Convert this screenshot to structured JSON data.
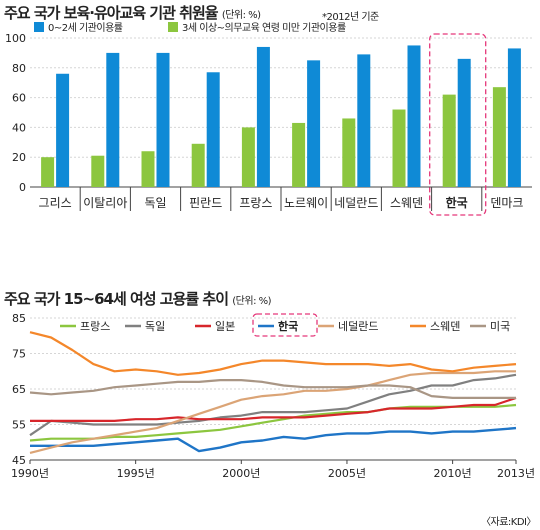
{
  "chart_data": [
    {
      "type": "bar",
      "title": "주요 국가 보육·유아교육 기관 취원율",
      "unit": "(단위: %)",
      "note": "*2012년 기준",
      "categories": [
        "그리스",
        "이탈리아",
        "독일",
        "핀란드",
        "프랑스",
        "노르웨이",
        "네덜란드",
        "스웨덴",
        "한국",
        "덴마크"
      ],
      "highlight": "한국",
      "ylim": [
        0,
        100
      ],
      "yticks": [
        0,
        20,
        40,
        60,
        80,
        100
      ],
      "series": [
        {
          "name": "3세 이상~의무교육 연령 미만 기관이용률",
          "color": "#8cc63f",
          "values": [
            20,
            21,
            24,
            29,
            40,
            43,
            46,
            52,
            62,
            67
          ]
        },
        {
          "name": "0~2세 기관이용률",
          "color": "#0f8ad6",
          "values": [
            76,
            90,
            90,
            77,
            94,
            85,
            89,
            95,
            86,
            93
          ]
        }
      ]
    },
    {
      "type": "line",
      "title": "주요 국가 15~64세 여성 고용률 추이",
      "unit": "(단위: %)",
      "source": "〈자료:KDI〉",
      "x": [
        1990,
        1991,
        1992,
        1993,
        1994,
        1995,
        1996,
        1997,
        1998,
        1999,
        2000,
        2001,
        2002,
        2003,
        2004,
        2005,
        2006,
        2007,
        2008,
        2009,
        2010,
        2011,
        2012,
        2013
      ],
      "xticks": [
        {
          "value": 1990,
          "label": "1990년"
        },
        {
          "value": 1995,
          "label": "1995년"
        },
        {
          "value": 2000,
          "label": "2000년"
        },
        {
          "value": 2005,
          "label": "2005년"
        },
        {
          "value": 2010,
          "label": "2010년"
        },
        {
          "value": 2013,
          "label": "2013년"
        }
      ],
      "ylim": [
        45,
        85
      ],
      "yticks": [
        45,
        55,
        65,
        75,
        85
      ],
      "highlight": "한국",
      "series": [
        {
          "name": "프랑스",
          "color": "#8cc63f",
          "values": [
            50.5,
            51,
            51,
            51,
            51.5,
            51.5,
            52,
            52.5,
            53,
            53.5,
            54.5,
            55.5,
            56.5,
            57.5,
            58,
            58.5,
            58.5,
            59.5,
            60,
            60,
            60,
            60,
            60,
            60.5
          ]
        },
        {
          "name": "독일",
          "color": "#808080",
          "values": [
            52,
            56,
            55.5,
            55,
            55,
            55,
            55,
            55.5,
            56,
            57,
            57.5,
            58.5,
            58.5,
            58.5,
            59,
            59.5,
            61.5,
            63.5,
            64.5,
            66,
            66,
            67.5,
            68,
            69
          ]
        },
        {
          "name": "일본",
          "color": "#d7262b",
          "values": [
            56,
            56,
            56,
            56,
            56,
            56.5,
            56.5,
            57,
            56.5,
            56.5,
            56.5,
            57,
            57,
            57,
            57.5,
            58,
            58.5,
            59.5,
            59.5,
            59.5,
            60,
            60.5,
            60.5,
            62.5
          ]
        },
        {
          "name": "한국",
          "color": "#1f75c7",
          "values": [
            49,
            49,
            49,
            49,
            49.5,
            50,
            50.5,
            51,
            47.5,
            48.5,
            50,
            50.5,
            51.5,
            51,
            52,
            52.5,
            52.5,
            53,
            53,
            52.5,
            53,
            53,
            53.5,
            54
          ]
        },
        {
          "name": "네덜란드",
          "color": "#dba476",
          "values": [
            47,
            48.5,
            50,
            51,
            52,
            53,
            54,
            56,
            58,
            60,
            62,
            63,
            63.5,
            64.5,
            64.5,
            65,
            66,
            67.5,
            69,
            69.5,
            69.5,
            69.5,
            70,
            70
          ]
        },
        {
          "name": "스웨덴",
          "color": "#f4872a",
          "values": [
            81,
            79.5,
            76,
            72,
            70,
            70.5,
            70,
            69,
            69.5,
            70.5,
            72,
            73,
            73,
            72.5,
            72,
            72,
            72,
            71.5,
            72,
            70.5,
            70,
            71,
            71.5,
            72
          ]
        },
        {
          "name": "미국",
          "color": "#a99685",
          "values": [
            64,
            63.5,
            64,
            64.5,
            65.5,
            66,
            66.5,
            67,
            67,
            67.5,
            67.5,
            67,
            66,
            65.5,
            65.5,
            65.5,
            66,
            66,
            65.5,
            63,
            62.5,
            62.5,
            62.5,
            62.5
          ]
        }
      ]
    }
  ]
}
